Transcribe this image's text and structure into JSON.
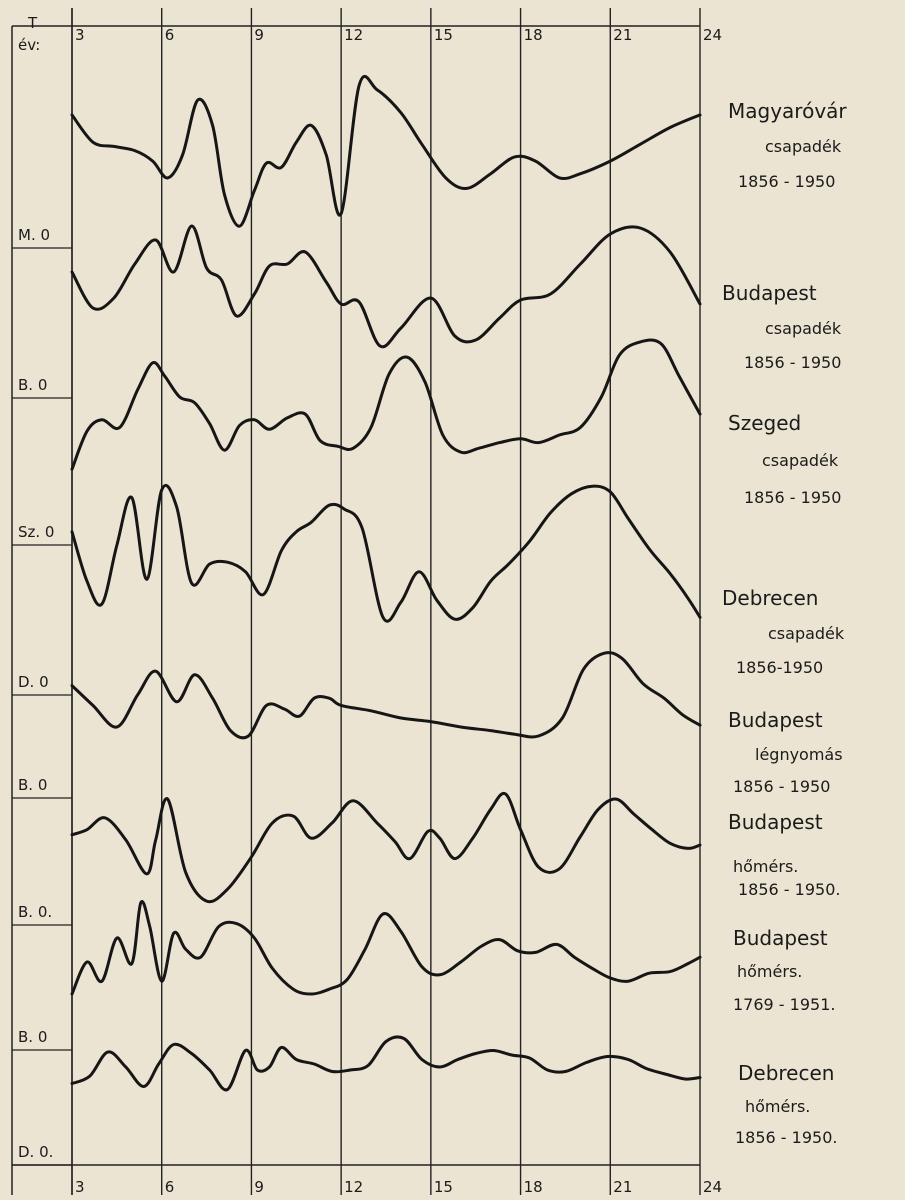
{
  "chart_data": {
    "type": "line",
    "axis_label": "T\név:",
    "axis_label_top": "T",
    "axis_label_bottom": "év:",
    "x_ticks": [
      3,
      6,
      9,
      12,
      15,
      18,
      21,
      24
    ],
    "x_tick_labels_top": [
      "3",
      "6",
      "9",
      "12",
      "15",
      "18",
      "21",
      "24"
    ],
    "x_tick_labels_bottom": [
      "3",
      "6",
      "9",
      "12",
      "15",
      "18",
      "21",
      "24"
    ],
    "xlim": [
      3,
      24
    ],
    "grid": true,
    "legend": "right",
    "series": [
      {
        "name": "Magyaróvár csapadék 1856-1950",
        "label_lines": [
          "Magyaróvár",
          "csapadék",
          "1856 - 1950"
        ],
        "zero_label": "M. 0",
        "x": [
          3,
          3.7,
          4.4,
          5.1,
          5.7,
          6.2,
          6.7,
          7.2,
          7.7,
          8.1,
          8.6,
          9.1,
          9.5,
          10.0,
          10.5,
          11.0,
          11.5,
          12.0,
          12.6,
          13.2,
          14.0,
          14.7,
          15.5,
          16.2,
          17.0,
          17.8,
          18.5,
          19.3,
          20.0,
          21.0,
          22.0,
          23.0,
          24.0
        ],
        "values": [
          0.55,
          -0.1,
          -0.2,
          -0.3,
          -0.55,
          -0.95,
          -0.4,
          0.9,
          0.3,
          -1.35,
          -2.1,
          -1.25,
          -0.6,
          -0.7,
          -0.1,
          0.3,
          -0.4,
          -1.8,
          1.25,
          1.15,
          0.6,
          -0.15,
          -0.95,
          -1.2,
          -0.85,
          -0.45,
          -0.55,
          -0.95,
          -0.85,
          -0.55,
          -0.15,
          0.25,
          0.55
        ]
      },
      {
        "name": "Budapest csapadék 1856-1950",
        "label_lines": [
          "Budapest",
          "csapadék",
          "1856 - 1950"
        ],
        "zero_label": "B. 0",
        "x": [
          3,
          3.7,
          4.4,
          5.1,
          5.8,
          6.4,
          7.0,
          7.5,
          8.0,
          8.5,
          9.1,
          9.6,
          10.2,
          10.8,
          11.5,
          12.0,
          12.6,
          13.3,
          14.0,
          15.0,
          15.8,
          16.5,
          17.3,
          18.0,
          19.0,
          20.0,
          21.0,
          22.0,
          23.0,
          24.0
        ],
        "values": [
          0.4,
          -0.5,
          -0.25,
          0.6,
          1.2,
          0.4,
          1.55,
          0.5,
          0.2,
          -0.7,
          -0.15,
          0.55,
          0.6,
          0.9,
          0.15,
          -0.4,
          -0.35,
          -1.45,
          -1.0,
          -0.25,
          -1.2,
          -1.3,
          -0.75,
          -0.3,
          -0.15,
          0.6,
          1.35,
          1.5,
          0.9,
          -0.4
        ]
      },
      {
        "name": "Szeged csapadék 1856-1950",
        "label_lines": [
          "Szeged",
          "csapadék",
          "1856 - 1950"
        ],
        "zero_label": "Sz. 0",
        "x": [
          3,
          3.5,
          4.0,
          4.6,
          5.2,
          5.7,
          6.1,
          6.6,
          7.1,
          7.6,
          8.1,
          8.6,
          9.1,
          9.6,
          10.2,
          10.8,
          11.3,
          11.9,
          12.4,
          13.0,
          13.6,
          14.2,
          14.8,
          15.4,
          16.0,
          16.6,
          17.3,
          18.0,
          18.6,
          19.3,
          20.0,
          20.7,
          21.3,
          22.0,
          22.7,
          23.3,
          24.0
        ],
        "values": [
          -0.9,
          0.1,
          0.4,
          0.2,
          1.2,
          1.9,
          1.55,
          1.0,
          0.85,
          0.3,
          -0.4,
          0.25,
          0.4,
          0.15,
          0.45,
          0.55,
          -0.15,
          -0.3,
          -0.35,
          0.2,
          1.6,
          2.05,
          1.4,
          0.0,
          -0.45,
          -0.35,
          -0.2,
          -0.1,
          -0.2,
          0.0,
          0.2,
          1.0,
          2.1,
          2.45,
          2.4,
          1.55,
          0.55
        ]
      },
      {
        "name": "Debrecen csapadék 1856-1950",
        "label_lines": [
          "Debrecen",
          "csapadék",
          "1856-1950"
        ],
        "zero_label": "D. 0",
        "x": [
          3,
          3.5,
          4.0,
          4.5,
          5.0,
          5.5,
          6.0,
          6.5,
          7.0,
          7.6,
          8.2,
          8.8,
          9.4,
          10.0,
          10.5,
          11.0,
          11.6,
          12.1,
          12.7,
          13.4,
          14.0,
          14.6,
          15.2,
          15.8,
          16.4,
          17.0,
          17.6,
          18.3,
          19.0,
          19.7,
          20.4,
          21.0,
          21.6,
          22.3,
          23.0,
          23.6,
          24.0
        ],
        "values": [
          1.4,
          0.1,
          -0.5,
          1.05,
          2.3,
          0.15,
          2.5,
          2.05,
          0.05,
          0.55,
          0.6,
          0.35,
          -0.25,
          0.9,
          1.4,
          1.65,
          2.1,
          2.0,
          1.5,
          -0.85,
          -0.45,
          0.35,
          -0.4,
          -0.9,
          -0.6,
          0.1,
          0.55,
          1.15,
          1.9,
          2.4,
          2.6,
          2.45,
          1.75,
          0.95,
          0.3,
          -0.35,
          -0.85
        ]
      },
      {
        "name": "Budapest légnyomás 1856-1950",
        "label_lines": [
          "Budapest",
          "légnyomás",
          "1856 - 1950"
        ],
        "zero_label": "B. 0",
        "x": [
          3,
          3.7,
          4.5,
          5.2,
          5.8,
          6.5,
          7.1,
          7.7,
          8.3,
          8.9,
          9.5,
          10.1,
          10.6,
          11.1,
          11.6,
          12.0,
          13.0,
          14.0,
          15.0,
          16.0,
          17.0,
          17.8,
          18.6,
          19.4,
          20.1,
          20.8,
          21.4,
          22.1,
          22.8,
          23.4,
          24.0
        ],
        "values": [
          0.9,
          0.35,
          -0.25,
          0.65,
          1.3,
          0.45,
          1.2,
          0.55,
          -0.35,
          -0.5,
          0.35,
          0.25,
          0.05,
          0.55,
          0.55,
          0.35,
          0.2,
          0.0,
          -0.1,
          -0.25,
          -0.35,
          -0.45,
          -0.5,
          0.0,
          1.35,
          1.8,
          1.65,
          0.95,
          0.55,
          0.1,
          -0.2
        ]
      },
      {
        "name": "Budapest hőmérs. 1856-1950.",
        "label_lines": [
          "Budapest",
          "hőmérs.",
          "1856 - 1950."
        ],
        "zero_label": "B. 0.",
        "x": [
          3,
          3.5,
          4.1,
          4.8,
          5.5,
          5.8,
          6.2,
          6.8,
          7.5,
          8.2,
          9.0,
          9.7,
          10.4,
          11.0,
          11.7,
          12.4,
          13.2,
          13.8,
          14.3,
          14.9,
          15.3,
          15.8,
          16.4,
          17.0,
          17.5,
          18.0,
          18.6,
          19.3,
          20.0,
          20.6,
          21.2,
          21.8,
          22.4,
          23.0,
          23.6,
          24.0
        ],
        "values": [
          0.3,
          0.45,
          0.8,
          0.15,
          -0.85,
          0.15,
          1.35,
          -0.8,
          -1.65,
          -1.3,
          -0.35,
          0.65,
          0.85,
          0.2,
          0.65,
          1.3,
          0.65,
          0.1,
          -0.4,
          0.4,
          0.2,
          -0.4,
          0.2,
          1.05,
          1.5,
          0.45,
          -0.65,
          -0.7,
          0.25,
          1.05,
          1.35,
          0.9,
          0.45,
          0.05,
          -0.1,
          0.0
        ]
      },
      {
        "name": "Budapest hőmérs. 1769-1951.",
        "label_lines": [
          "Budapest",
          "hőmérs.",
          "1769 - 1951."
        ],
        "zero_label": "B. 0",
        "x": [
          3,
          3.5,
          4.0,
          4.5,
          5.0,
          5.3,
          5.6,
          6.0,
          6.4,
          6.8,
          7.3,
          7.9,
          8.5,
          9.1,
          9.7,
          10.4,
          11.0,
          11.6,
          12.2,
          12.8,
          13.4,
          14.0,
          14.7,
          15.3,
          16.0,
          16.7,
          17.3,
          17.9,
          18.5,
          19.2,
          19.8,
          20.4,
          21.0,
          21.6,
          22.3,
          23.0,
          23.6,
          24.0
        ],
        "values": [
          -0.75,
          0.25,
          -0.35,
          1.0,
          0.2,
          2.1,
          1.35,
          -0.35,
          1.15,
          0.65,
          0.4,
          1.35,
          1.45,
          1.0,
          0.05,
          -0.6,
          -0.75,
          -0.6,
          -0.3,
          0.65,
          1.75,
          1.2,
          0.1,
          -0.15,
          0.25,
          0.75,
          0.95,
          0.6,
          0.55,
          0.8,
          0.4,
          0.05,
          -0.25,
          -0.35,
          -0.1,
          -0.05,
          0.2,
          0.4
        ]
      },
      {
        "name": "Debrecen hőmérs. 1856-1950.",
        "label_lines": [
          "Debrecen",
          "hőmérs.",
          "1856 - 1950."
        ],
        "zero_label": "D. 0.",
        "x": [
          3,
          3.6,
          4.2,
          4.8,
          5.4,
          5.9,
          6.4,
          7.0,
          7.6,
          8.2,
          8.8,
          9.2,
          9.6,
          10.0,
          10.5,
          11.1,
          11.7,
          12.3,
          12.9,
          13.5,
          14.1,
          14.7,
          15.3,
          15.9,
          16.5,
          17.1,
          17.7,
          18.3,
          18.9,
          19.5,
          20.2,
          20.9,
          21.6,
          22.2,
          22.9,
          23.5,
          24.0
        ],
        "values": [
          0.05,
          0.3,
          1.1,
          0.6,
          -0.05,
          0.7,
          1.35,
          1.05,
          0.5,
          -0.15,
          1.15,
          0.5,
          0.6,
          1.25,
          0.85,
          0.7,
          0.45,
          0.5,
          0.65,
          1.45,
          1.55,
          0.85,
          0.6,
          0.85,
          1.05,
          1.15,
          1.0,
          0.9,
          0.5,
          0.45,
          0.75,
          0.95,
          0.85,
          0.55,
          0.35,
          0.2,
          0.25
        ]
      }
    ]
  }
}
